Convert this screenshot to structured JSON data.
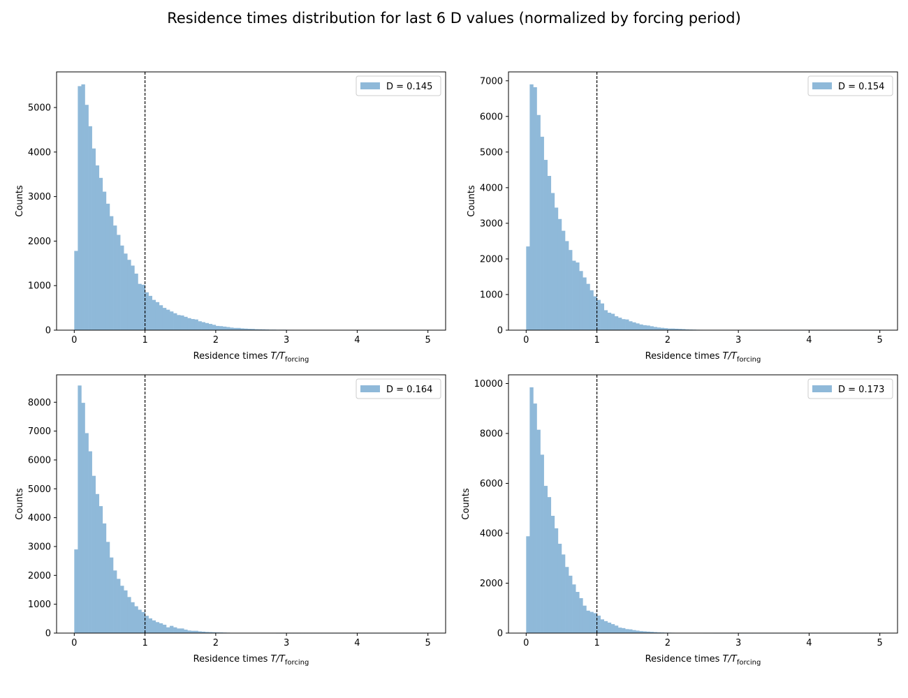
{
  "figure": {
    "suptitle": "Residence times distribution for last 6 D values (normalized by forcing period)"
  },
  "chart_data": [
    {
      "type": "bar",
      "title": "",
      "xlabel_prefix": "Residence times ",
      "xlabel_var": "T/T",
      "xlabel_sub": "forcing",
      "ylabel": "Counts",
      "legend": "D = 0.145",
      "legend_position": "top-right",
      "bar_color": "#8fb9d9",
      "xlim": [
        -0.25,
        5.25
      ],
      "ylim": [
        0,
        5800
      ],
      "xticks": [
        0,
        1,
        2,
        3,
        4,
        5
      ],
      "yticks": [
        0,
        1000,
        2000,
        3000,
        4000,
        5000
      ],
      "vline_x": 1,
      "bin_width": 0.05,
      "bin_start": 0,
      "values": [
        1780,
        5480,
        5520,
        5060,
        4580,
        4080,
        3700,
        3420,
        3110,
        2840,
        2560,
        2350,
        2140,
        1900,
        1720,
        1580,
        1450,
        1270,
        1040,
        1020,
        850,
        770,
        680,
        630,
        560,
        500,
        460,
        420,
        380,
        340,
        330,
        300,
        270,
        250,
        240,
        200,
        180,
        160,
        140,
        120,
        95,
        90,
        80,
        70,
        58,
        50,
        50,
        40,
        35,
        30,
        28,
        22,
        20,
        18,
        15,
        12,
        12,
        10,
        10,
        10,
        8,
        8,
        7,
        7,
        6,
        5,
        5,
        5,
        4,
        4,
        3,
        3,
        3,
        3,
        2,
        2,
        2,
        2,
        2,
        2,
        1,
        1,
        1,
        1,
        1,
        1,
        1,
        1,
        1,
        1,
        1,
        1,
        1,
        1,
        1,
        1,
        1,
        1,
        1,
        1
      ]
    },
    {
      "type": "bar",
      "title": "",
      "xlabel_prefix": "Residence times ",
      "xlabel_var": "T/T",
      "xlabel_sub": "forcing",
      "ylabel": "Counts",
      "legend": "D = 0.154",
      "legend_position": "top-right",
      "bar_color": "#8fb9d9",
      "xlim": [
        -0.25,
        5.25
      ],
      "ylim": [
        0,
        7250
      ],
      "xticks": [
        0,
        1,
        2,
        3,
        4,
        5
      ],
      "yticks": [
        0,
        1000,
        2000,
        3000,
        4000,
        5000,
        6000,
        7000
      ],
      "vline_x": 1,
      "bin_width": 0.05,
      "bin_start": 0,
      "values": [
        2350,
        6900,
        6820,
        6040,
        5430,
        4780,
        4330,
        3850,
        3440,
        3120,
        2790,
        2500,
        2250,
        1950,
        1900,
        1660,
        1480,
        1300,
        1120,
        950,
        850,
        750,
        560,
        490,
        460,
        390,
        350,
        310,
        300,
        250,
        220,
        190,
        160,
        140,
        130,
        110,
        90,
        75,
        65,
        55,
        45,
        45,
        40,
        35,
        30,
        22,
        18,
        15,
        12,
        10,
        9,
        8,
        7,
        6,
        5,
        4,
        3,
        3,
        3,
        2,
        2,
        2,
        2,
        1,
        1,
        1,
        1,
        1,
        1,
        1,
        1,
        1,
        1,
        1,
        1,
        1,
        1,
        1,
        1,
        1,
        1,
        1,
        1,
        1,
        1,
        1,
        1,
        1,
        1,
        1,
        1,
        1,
        1,
        1,
        1,
        1,
        1,
        1,
        1,
        1
      ]
    },
    {
      "type": "bar",
      "title": "",
      "xlabel_prefix": "Residence times ",
      "xlabel_var": "T/T",
      "xlabel_sub": "forcing",
      "ylabel": "Counts",
      "legend": "D = 0.164",
      "legend_position": "top-right",
      "bar_color": "#8fb9d9",
      "xlim": [
        -0.25,
        5.25
      ],
      "ylim": [
        0,
        8950
      ],
      "xticks": [
        0,
        1,
        2,
        3,
        4,
        5
      ],
      "yticks": [
        0,
        1000,
        2000,
        3000,
        4000,
        5000,
        6000,
        7000,
        8000
      ],
      "vline_x": 1,
      "bin_width": 0.05,
      "bin_start": 0,
      "values": [
        2900,
        8580,
        7980,
        6930,
        6300,
        5450,
        4820,
        4400,
        3800,
        3160,
        2620,
        2170,
        1880,
        1640,
        1480,
        1250,
        1070,
        930,
        810,
        730,
        600,
        510,
        440,
        380,
        340,
        290,
        200,
        250,
        200,
        160,
        160,
        120,
        90,
        80,
        80,
        60,
        50,
        40,
        35,
        30,
        25,
        22,
        18,
        15,
        12,
        10,
        9,
        8,
        7,
        5,
        4,
        3,
        3,
        2,
        2,
        2,
        2,
        1,
        1,
        1,
        1,
        1,
        1,
        1,
        1,
        1,
        1,
        1,
        1,
        1,
        1,
        1,
        1,
        1,
        1,
        1,
        1,
        1,
        1,
        1,
        1,
        1,
        1,
        1,
        1,
        1,
        1,
        1,
        1,
        1,
        1,
        1,
        1,
        1,
        1,
        1,
        1,
        1,
        1,
        1
      ]
    },
    {
      "type": "bar",
      "title": "",
      "xlabel_prefix": "Residence times ",
      "xlabel_var": "T/T",
      "xlabel_sub": "forcing",
      "ylabel": "Counts",
      "legend": "D = 0.173",
      "legend_position": "top-right",
      "bar_color": "#8fb9d9",
      "xlim": [
        -0.25,
        5.25
      ],
      "ylim": [
        0,
        10350
      ],
      "xticks": [
        0,
        1,
        2,
        3,
        4,
        5
      ],
      "yticks": [
        0,
        2000,
        4000,
        6000,
        8000,
        10000
      ],
      "vline_x": 1,
      "bin_width": 0.05,
      "bin_start": 0,
      "values": [
        3880,
        9850,
        9200,
        8150,
        7150,
        5900,
        5450,
        4700,
        4200,
        3580,
        3150,
        2650,
        2300,
        1950,
        1650,
        1400,
        1100,
        900,
        850,
        800,
        700,
        550,
        480,
        420,
        360,
        300,
        220,
        200,
        160,
        150,
        120,
        100,
        80,
        70,
        60,
        50,
        40,
        30,
        25,
        20,
        18,
        15,
        12,
        10,
        8,
        6,
        5,
        4,
        3,
        3,
        2,
        2,
        2,
        1,
        1,
        1,
        1,
        1,
        1,
        1,
        1,
        1,
        1,
        1,
        1,
        1,
        1,
        1,
        1,
        1,
        1,
        1,
        1,
        1,
        1,
        1,
        1,
        1,
        1,
        1,
        1,
        1,
        1,
        1,
        1,
        1,
        1,
        1,
        1,
        1,
        1,
        1,
        1,
        1,
        1,
        1,
        1,
        1,
        1,
        1
      ]
    }
  ]
}
